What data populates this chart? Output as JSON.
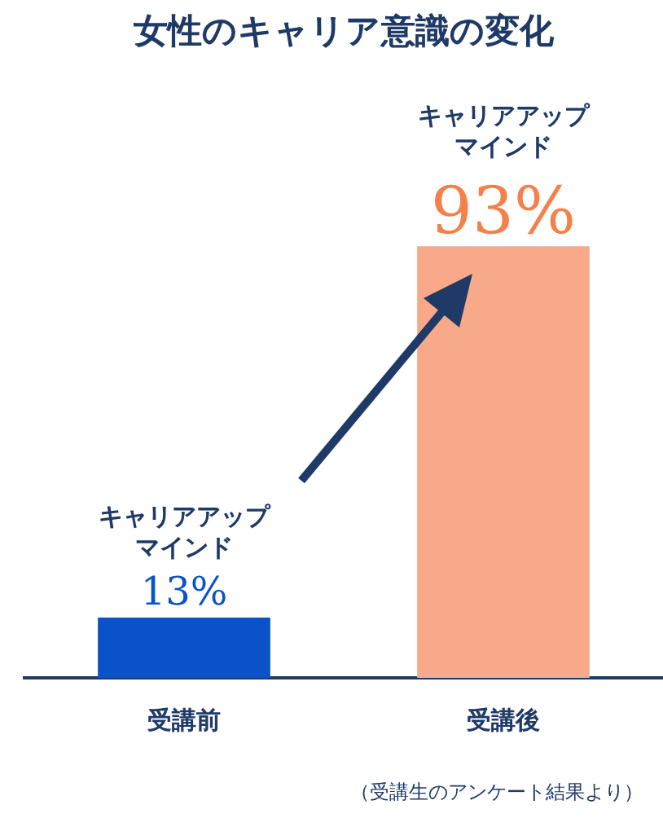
{
  "chart_data": {
    "type": "bar",
    "title": "女性のキャリア意識の変化",
    "categories": [
      "受講前",
      "受講後"
    ],
    "values": [
      13,
      93
    ],
    "colors": [
      "#0a52c8",
      "#f8a98a"
    ],
    "value_labels": [
      "13%",
      "93%"
    ],
    "grid": false,
    "legend": false,
    "annotations": [
      "キャリアアップ",
      "マインド",
      "キャリアアップ",
      "マインド",
      "（受講生のアンケート結果より）"
    ]
  }
}
